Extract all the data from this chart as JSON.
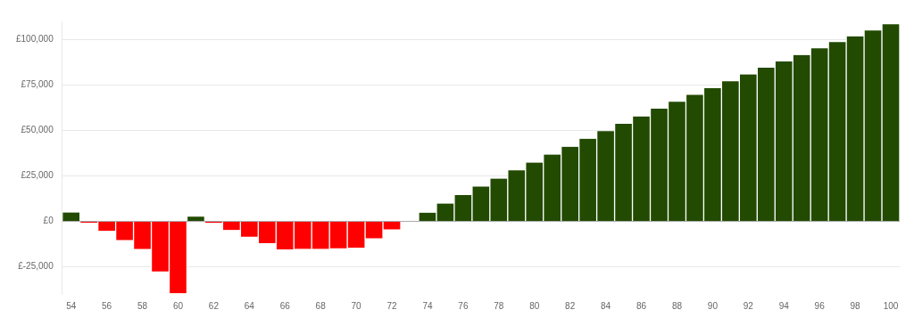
{
  "chart_data": {
    "type": "bar",
    "categories": [
      "54",
      null,
      "56",
      null,
      "58",
      null,
      "60",
      null,
      "62",
      null,
      "64",
      null,
      "66",
      null,
      "68",
      null,
      "70",
      null,
      "72",
      null,
      "74",
      null,
      "76",
      null,
      "78",
      null,
      "80",
      null,
      "82",
      null,
      "84",
      null,
      "86",
      null,
      "88",
      null,
      "90",
      null,
      "92",
      null,
      "94",
      null,
      "96",
      null,
      "98",
      null,
      "100"
    ],
    "values": [
      4800,
      -800,
      -5300,
      -10400,
      -15300,
      -27600,
      -39600,
      2500,
      -900,
      -4800,
      -8500,
      -12000,
      -15500,
      -15200,
      -15200,
      -14900,
      -14600,
      -9400,
      -4500,
      0,
      4700,
      9700,
      14400,
      19100,
      23500,
      28000,
      32300,
      36700,
      41000,
      45400,
      49600,
      53600,
      57700,
      61900,
      65700,
      69600,
      73200,
      77000,
      80800,
      84500,
      88000,
      91500,
      95200,
      98600,
      101800,
      105000,
      108400
    ],
    "colors": [
      "#224a00",
      "#ff0000",
      "#ff0000",
      "#ff0000",
      "#ff0000",
      "#ff0000",
      "#ff0000",
      "#224a00",
      "#ff0000",
      "#ff0000",
      "#ff0000",
      "#ff0000",
      "#ff0000",
      "#ff0000",
      "#ff0000",
      "#ff0000",
      "#ff0000",
      "#ff0000",
      "#ff0000",
      "#224a00",
      "#224a00",
      "#224a00",
      "#224a00",
      "#224a00",
      "#224a00",
      "#224a00",
      "#224a00",
      "#224a00",
      "#224a00",
      "#224a00",
      "#224a00",
      "#224a00",
      "#224a00",
      "#224a00",
      "#224a00",
      "#224a00",
      "#224a00",
      "#224a00",
      "#224a00",
      "#224a00",
      "#224a00",
      "#224a00",
      "#224a00",
      "#224a00",
      "#224a00",
      "#224a00",
      "#224a00"
    ],
    "ylim": [
      -40000,
      110000
    ],
    "yticks": [
      {
        "value": -25000,
        "label": "£-25,000"
      },
      {
        "value": 0,
        "label": "£0"
      },
      {
        "value": 25000,
        "label": "£25,000"
      },
      {
        "value": 50000,
        "label": "£50,000"
      },
      {
        "value": 75000,
        "label": "£75,000"
      },
      {
        "value": 100000,
        "label": "£100,000"
      }
    ],
    "grid": "y",
    "legend": false
  }
}
